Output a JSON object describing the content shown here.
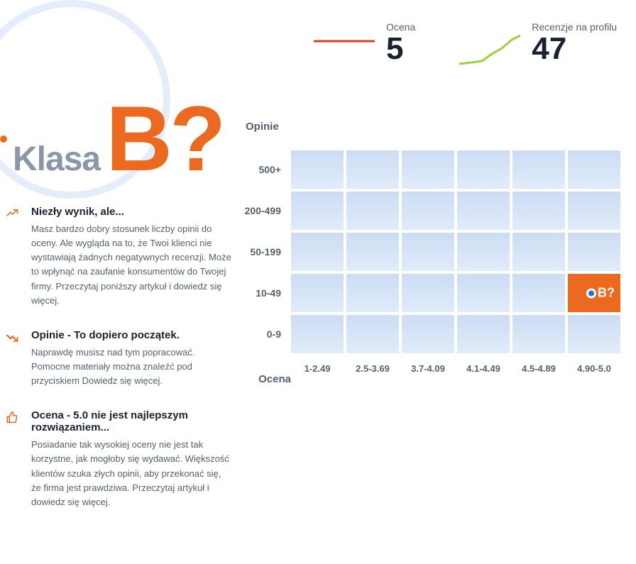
{
  "grade": {
    "label": "Klasa",
    "letter": "B?",
    "dot_color": "#ec6a1f",
    "label_color": "#8a97a8",
    "letter_color": "#ec6a1f",
    "circle_color": "#e4eefb"
  },
  "tips": [
    {
      "icon": "trend-up",
      "title": "Niezły wynik, ale...",
      "body": "Masz bardzo dobry stosunek liczby opinii do oceny. Ale wygląda na to, że Twoi klienci nie wystawiają żadnych negatywnych recenzji. Może to wpłynąć na zaufanie konsumentów do Twojej firmy. Przeczytaj poniższy artykuł i dowiedz się więcej."
    },
    {
      "icon": "trend-down",
      "title": "Opinie - To dopiero początek.",
      "body": "Naprawdę musisz nad tym popracować. Pomocne materiały można znaleźć pod przyciskiem Dowiedz się więcej."
    },
    {
      "icon": "thumb-up",
      "title": "Ocena - 5.0 nie jest najlepszym rozwiązaniem...",
      "body": "Posiadanie tak wysokiej oceny nie jest tak korzystne, jak mogłoby się wydawać. Większość klientów szuka złych opinii, aby przekonać się, że firma jest prawdziwa. Przeczytaj artykuł i dowiedz się więcej."
    }
  ],
  "stats": {
    "rating_label": "Ocena",
    "rating_value": "5",
    "rating_spark_color": "#d93a2b",
    "reviews_label": "Recenzje na profilu",
    "reviews_value": "47",
    "reviews_spark_color": "#9ecf3f"
  },
  "matrix": {
    "y_title": "Opinie",
    "x_title": "Ocena",
    "y_labels": [
      "500+",
      "200-499",
      "50-199",
      "10-49",
      "0-9"
    ],
    "x_labels": [
      "1-2.49",
      "2.5-3.69",
      "3.7-4.09",
      "4.1-4.49",
      "4.5-4.89",
      "4.90-5.0"
    ],
    "cell_gradient": {
      "top_color": "#cbdcf4",
      "bottom_color": "#e1ecf9"
    },
    "highlight_color": "#ec6a1f",
    "highlight": {
      "row": 3,
      "col": 5,
      "label": "B?"
    },
    "marker_dot_color": "#1b74e4",
    "marker_ring_color": "#ffffff"
  },
  "icon_color": "#ec6a1f"
}
